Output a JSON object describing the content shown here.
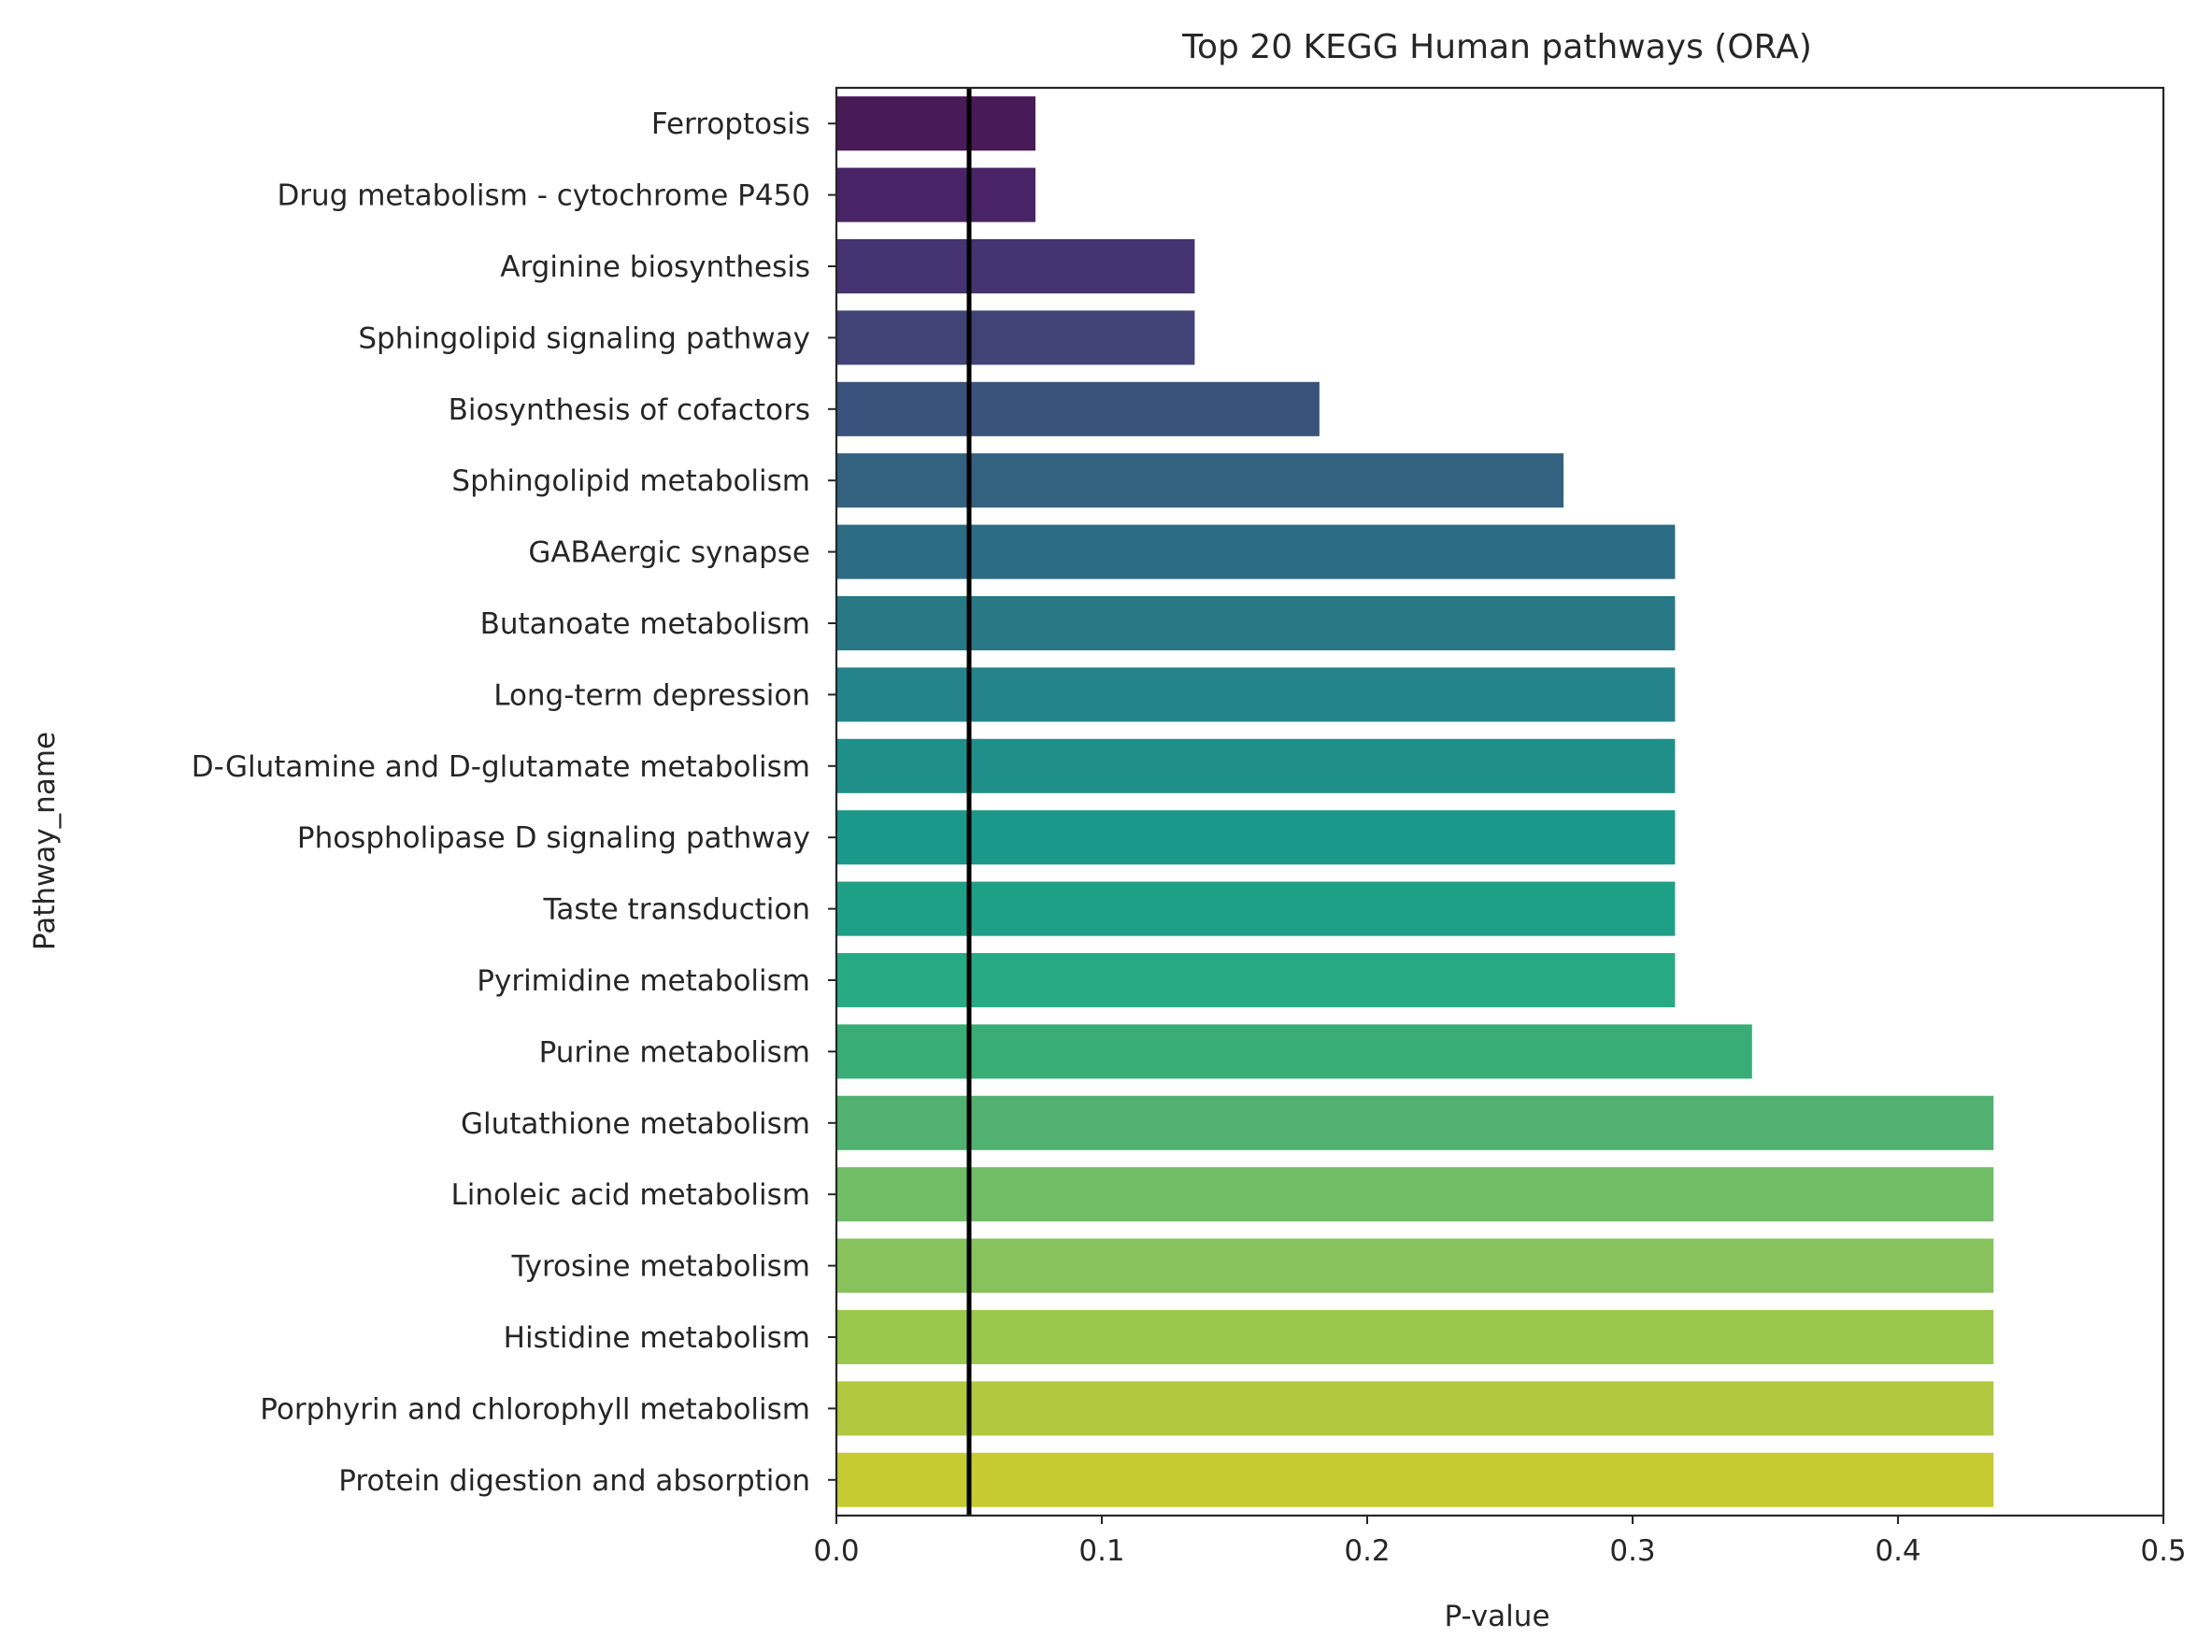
{
  "chart_data": {
    "type": "bar",
    "orientation": "horizontal",
    "title": "Top 20 KEGG Human pathways (ORA)",
    "xlabel": "P-value",
    "ylabel": "Pathway_name",
    "xlim": [
      0.0,
      0.5
    ],
    "xticks": [
      "0.0",
      "0.1",
      "0.2",
      "0.3",
      "0.4",
      "0.5"
    ],
    "xtick_values": [
      0.0,
      0.1,
      0.2,
      0.3,
      0.4,
      0.5
    ],
    "threshold_line": 0.05,
    "grid": false,
    "palette": "viridis",
    "categories": [
      "Ferroptosis",
      "Drug metabolism - cytochrome P450",
      "Arginine biosynthesis",
      "Sphingolipid signaling pathway",
      "Biosynthesis of cofactors",
      "Sphingolipid metabolism",
      "GABAergic synapse",
      "Butanoate metabolism",
      "Long-term depression",
      "D-Glutamine and D-glutamate metabolism",
      "Phospholipase D signaling pathway",
      "Taste transduction",
      "Pyrimidine metabolism",
      "Purine metabolism",
      "Glutathione metabolism",
      "Linoleic acid metabolism",
      "Tyrosine metabolism",
      "Histidine metabolism",
      "Porphyrin and chlorophyll metabolism",
      "Protein digestion and absorption"
    ],
    "values": [
      0.075,
      0.075,
      0.135,
      0.135,
      0.182,
      0.274,
      0.316,
      0.316,
      0.316,
      0.316,
      0.316,
      0.316,
      0.316,
      0.345,
      0.436,
      0.436,
      0.436,
      0.436,
      0.436,
      0.436
    ],
    "colors": [
      "#481a58",
      "#482466",
      "#453471",
      "#414377",
      "#3a537c",
      "#32627f",
      "#2c6c85",
      "#297886",
      "#25848b",
      "#1f9089",
      "#1a988a",
      "#1ea087",
      "#28ab84",
      "#3aac75",
      "#52b070",
      "#70bd66",
      "#88c25c",
      "#9ac84d",
      "#b1c83f",
      "#c6cb32"
    ]
  }
}
